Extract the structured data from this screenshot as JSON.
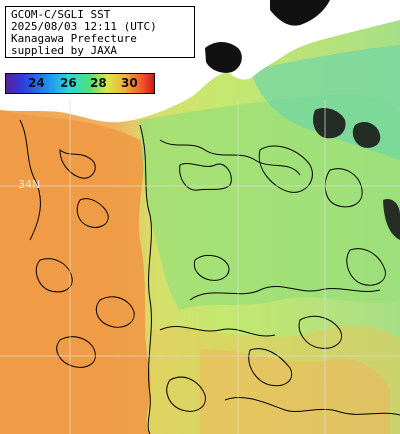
{
  "info": {
    "lines": [
      "GCOM-C/SGLI SST",
      "2025/08/03 12:11 (UTC)",
      "Kanagawa Prefecture",
      "supplied by JAXA"
    ]
  },
  "colorbar": {
    "ticks": [
      "24",
      "26",
      "28",
      "30"
    ],
    "colors": [
      "#5a1fa0",
      "#2b3fe0",
      "#1f8ff0",
      "#27d6e0",
      "#4de07a",
      "#d8e845",
      "#f3b13a",
      "#f2552a",
      "#d01818"
    ]
  },
  "map": {
    "lat_label": "34N",
    "colors": {
      "warm_orange": "#f0a050",
      "orange": "#f3b76a",
      "yellow_green": "#cde86a",
      "green": "#98e07a",
      "cyan_green": "#6fd8a8",
      "land": "#ffffff",
      "land_dark": "#111111",
      "contour": "#000000",
      "grid": "#dcdcdc"
    }
  }
}
